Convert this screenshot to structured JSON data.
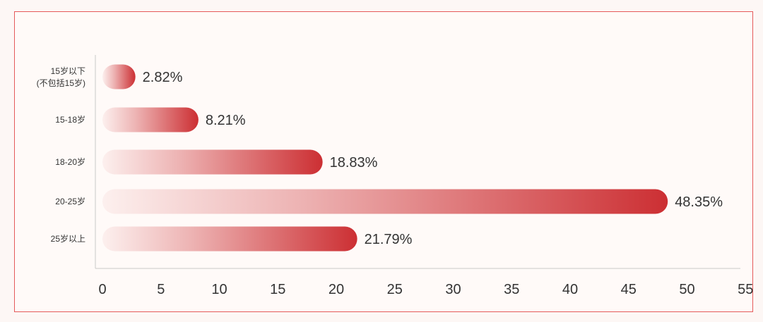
{
  "chart_data": {
    "type": "bar",
    "orientation": "horizontal",
    "categories": [
      "15岁以下\n(不包括15岁)",
      "15-18岁",
      "18-20岁",
      "20-25岁",
      "25岁以上"
    ],
    "values": [
      2.82,
      8.21,
      18.83,
      48.35,
      21.79
    ],
    "value_labels": [
      "2.82%",
      "8.21%",
      "18.83%",
      "48.35%",
      "21.79%"
    ],
    "xlim": [
      0,
      55
    ],
    "x_ticks": [
      "0",
      "5",
      "10",
      "15",
      "20",
      "25",
      "30",
      "35",
      "40",
      "45",
      "50",
      "55"
    ],
    "grid": false,
    "bar_color": "#cc2f33",
    "bar_fade_color": "#ffffff"
  }
}
